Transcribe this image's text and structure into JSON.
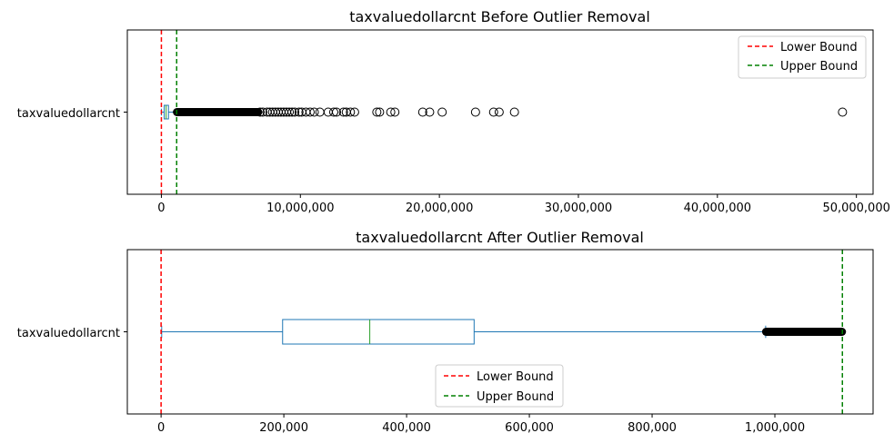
{
  "chart_data": [
    {
      "type": "boxplot",
      "orientation": "horizontal",
      "title": "taxvaluedollarcnt Before Outlier Removal",
      "category_label": "taxvaluedollarcnt",
      "xlim": [
        -2450000,
        51200000
      ],
      "xticks": [
        0,
        10000000,
        20000000,
        30000000,
        40000000,
        50000000
      ],
      "xtick_labels": [
        "0",
        "10,000,000",
        "20,000,000",
        "30,000,000",
        "40,000,000",
        "50,000,000"
      ],
      "box": {
        "whisker_low": 0,
        "q1": 200000,
        "median": 340000,
        "q3": 510000,
        "whisker_high": 1090000
      },
      "outliers_dense_range": [
        1090000,
        7000000
      ],
      "outliers": [
        7100000,
        7300000,
        7600000,
        7800000,
        8000000,
        8200000,
        8400000,
        8600000,
        8800000,
        9000000,
        9200000,
        9400000,
        9600000,
        9900000,
        10100000,
        10400000,
        10700000,
        11000000,
        11400000,
        12000000,
        12400000,
        12600000,
        13100000,
        13300000,
        13600000,
        13900000,
        15500000,
        15700000,
        16500000,
        16800000,
        18800000,
        19300000,
        20200000,
        22600000,
        23900000,
        24300000,
        25400000,
        49000000
      ],
      "bounds": {
        "lower": 0,
        "upper": 1100000
      },
      "legend": {
        "position": "upper right",
        "entries": [
          {
            "label": "Lower Bound",
            "color": "#ff0000"
          },
          {
            "label": "Upper Bound",
            "color": "#008000"
          }
        ]
      }
    },
    {
      "type": "boxplot",
      "orientation": "horizontal",
      "title": "taxvaluedollarcnt After Outlier Removal",
      "category_label": "taxvaluedollarcnt",
      "xlim": [
        -55000,
        1160000
      ],
      "xticks": [
        0,
        200000,
        400000,
        600000,
        800000,
        1000000
      ],
      "xtick_labels": [
        "0",
        "200,000",
        "400,000",
        "600,000",
        "800,000",
        "1,000,000"
      ],
      "box": {
        "whisker_low": 1000,
        "q1": 198000,
        "median": 340000,
        "q3": 510000,
        "whisker_high": 985000
      },
      "outliers_dense_range": [
        985000,
        1110000
      ],
      "outliers": [],
      "bounds": {
        "lower": 0,
        "upper": 1110000
      },
      "legend": {
        "position": "lower center",
        "entries": [
          {
            "label": "Lower Bound",
            "color": "#ff0000"
          },
          {
            "label": "Upper Bound",
            "color": "#008000"
          }
        ]
      }
    }
  ],
  "colors": {
    "box": "#1f77b4",
    "median": "#2ca02c",
    "lower_bound": "#ff0000",
    "upper_bound": "#008000",
    "flier": "#000000"
  }
}
